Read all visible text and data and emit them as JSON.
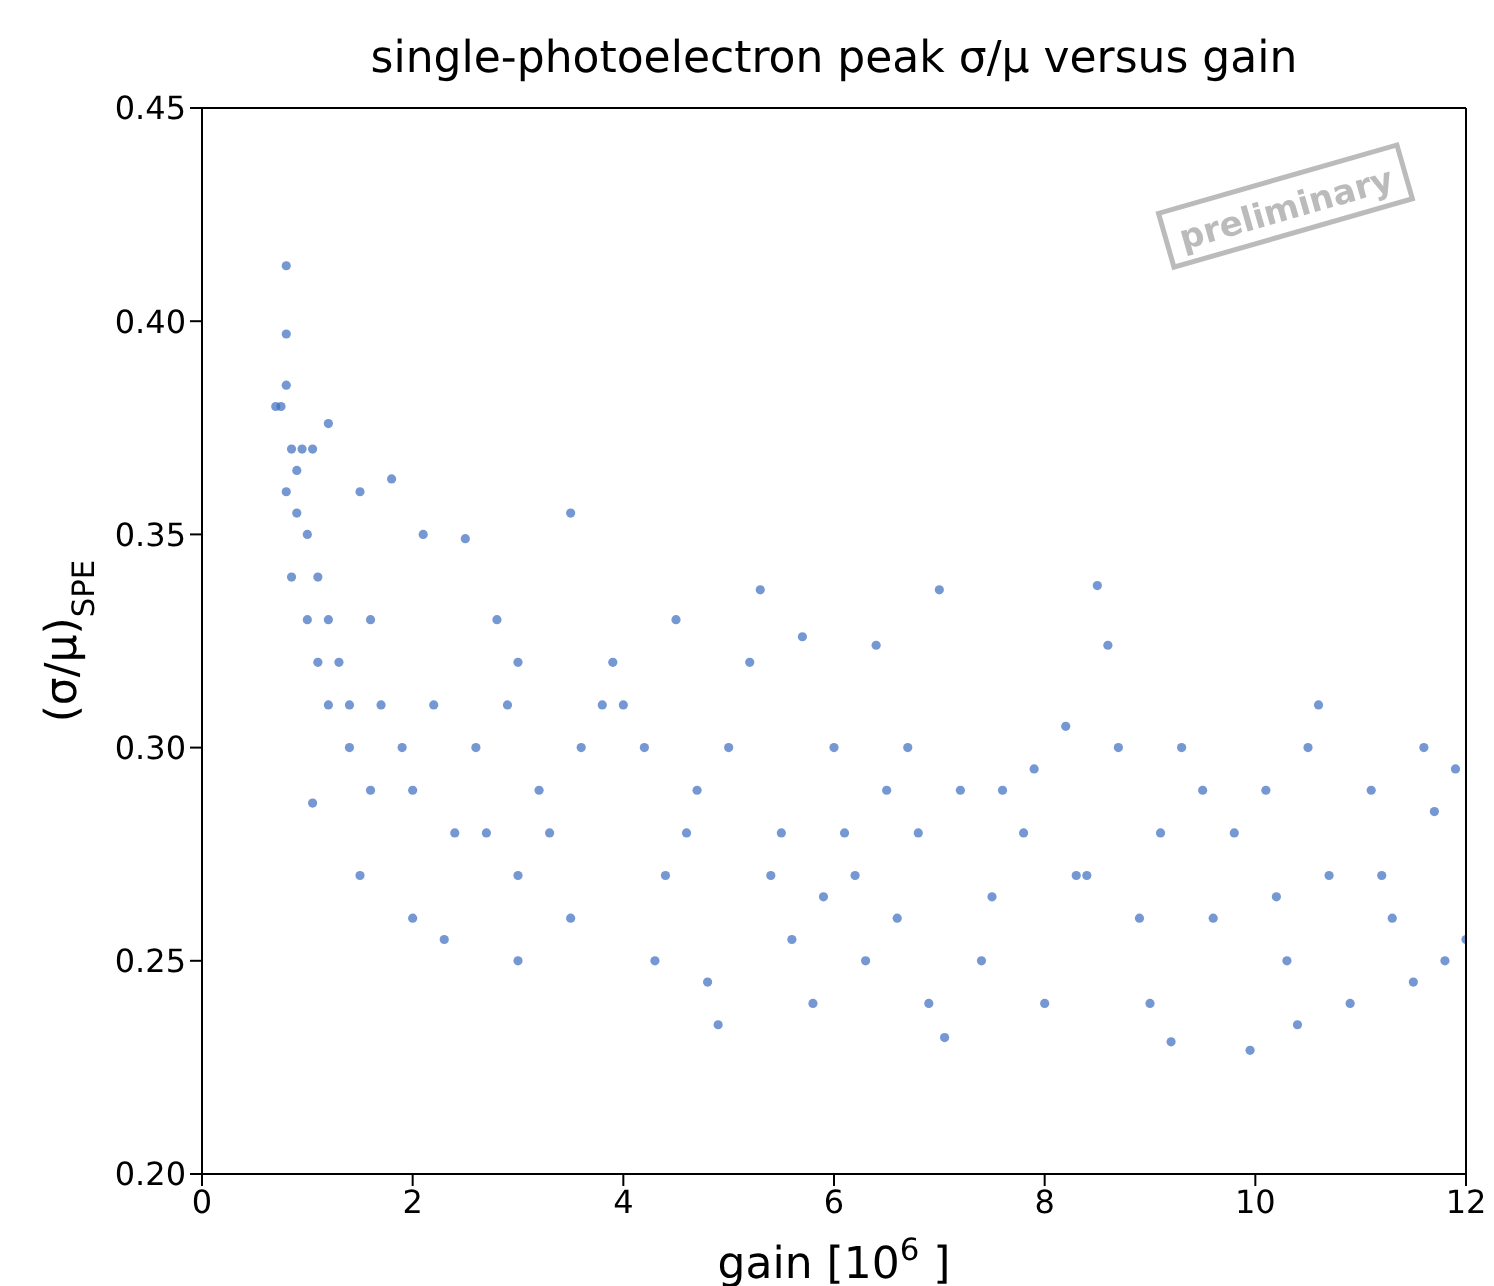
{
  "chart_data": {
    "type": "scatter",
    "title": "single-photoelectron peak σ/μ versus gain",
    "xlabel": "gain [10$^{6}$ ]",
    "ylabel": "(σ/μ)$_{SPE}$",
    "annotations": [
      "preliminary"
    ],
    "xlim": [
      0,
      12
    ],
    "xticks": [
      0,
      2,
      4,
      6,
      8,
      10,
      12
    ],
    "ylim": [
      0.2,
      0.45
    ],
    "yticks": [
      {
        "value": 0.2,
        "label": "0.20"
      },
      0.25,
      {
        "value": 0.3,
        "label": "0.30"
      },
      0.35,
      {
        "value": 0.4,
        "label": "0.40"
      },
      0.45
    ],
    "marker": "circle",
    "series": [
      {
        "color": "#3b6cc0",
        "x": [
          0.8,
          0.8,
          0.75,
          0.7,
          0.8,
          0.85,
          0.9,
          0.95,
          1.05,
          1.2,
          0.8,
          0.9,
          1.0,
          0.85,
          1.1,
          1.0,
          1.2,
          1.3,
          1.1,
          1.4,
          1.5,
          1.8,
          1.6,
          1.05,
          1.4,
          1.5,
          1.7,
          1.9,
          2.0,
          2.1,
          2.5,
          2.2,
          2.4,
          2.0,
          2.3,
          2.6,
          2.8,
          3.0,
          3.5,
          3.2,
          3.0,
          3.0,
          3.6,
          3.8,
          3.5,
          4.0,
          4.2,
          4.3,
          4.5,
          4.6,
          4.8,
          4.9,
          5.0,
          5.2,
          5.3,
          5.5,
          5.6,
          5.7,
          5.8,
          6.0,
          6.2,
          6.3,
          6.4,
          6.5,
          6.7,
          6.9,
          7.0,
          7.05,
          7.2,
          7.4,
          7.6,
          7.8,
          8.0,
          8.2,
          8.4,
          8.5,
          8.6,
          8.7,
          8.9,
          9.0,
          9.2,
          9.3,
          9.5,
          9.6,
          9.8,
          9.95,
          10.1,
          10.3,
          10.4,
          10.5,
          10.7,
          10.9,
          11.1,
          11.3,
          11.5,
          11.6,
          11.8,
          11.9,
          12.0,
          11.7,
          10.2,
          9.1,
          8.3,
          7.5,
          6.8,
          6.1,
          5.4,
          4.4,
          3.3,
          2.7,
          1.6,
          1.2,
          4.7,
          5.9,
          7.9,
          3.9,
          2.9,
          6.6,
          10.6,
          11.2
        ],
        "values": [
          0.413,
          0.397,
          0.38,
          0.38,
          0.385,
          0.37,
          0.365,
          0.37,
          0.37,
          0.376,
          0.36,
          0.355,
          0.35,
          0.34,
          0.34,
          0.33,
          0.33,
          0.32,
          0.32,
          0.31,
          0.36,
          0.363,
          0.33,
          0.287,
          0.3,
          0.27,
          0.31,
          0.3,
          0.29,
          0.35,
          0.349,
          0.31,
          0.28,
          0.26,
          0.255,
          0.3,
          0.33,
          0.32,
          0.355,
          0.29,
          0.25,
          0.27,
          0.3,
          0.31,
          0.26,
          0.31,
          0.3,
          0.25,
          0.33,
          0.28,
          0.245,
          0.235,
          0.3,
          0.32,
          0.337,
          0.28,
          0.255,
          0.326,
          0.24,
          0.3,
          0.27,
          0.25,
          0.324,
          0.29,
          0.3,
          0.24,
          0.337,
          0.232,
          0.29,
          0.25,
          0.29,
          0.28,
          0.24,
          0.305,
          0.27,
          0.338,
          0.324,
          0.3,
          0.26,
          0.24,
          0.231,
          0.3,
          0.29,
          0.26,
          0.28,
          0.229,
          0.29,
          0.25,
          0.235,
          0.3,
          0.27,
          0.24,
          0.29,
          0.26,
          0.245,
          0.3,
          0.25,
          0.295,
          0.255,
          0.285,
          0.265,
          0.28,
          0.27,
          0.265,
          0.28,
          0.28,
          0.27,
          0.27,
          0.28,
          0.28,
          0.29,
          0.31,
          0.29,
          0.265,
          0.295,
          0.32,
          0.31,
          0.26,
          0.31,
          0.27
        ]
      }
    ]
  }
}
